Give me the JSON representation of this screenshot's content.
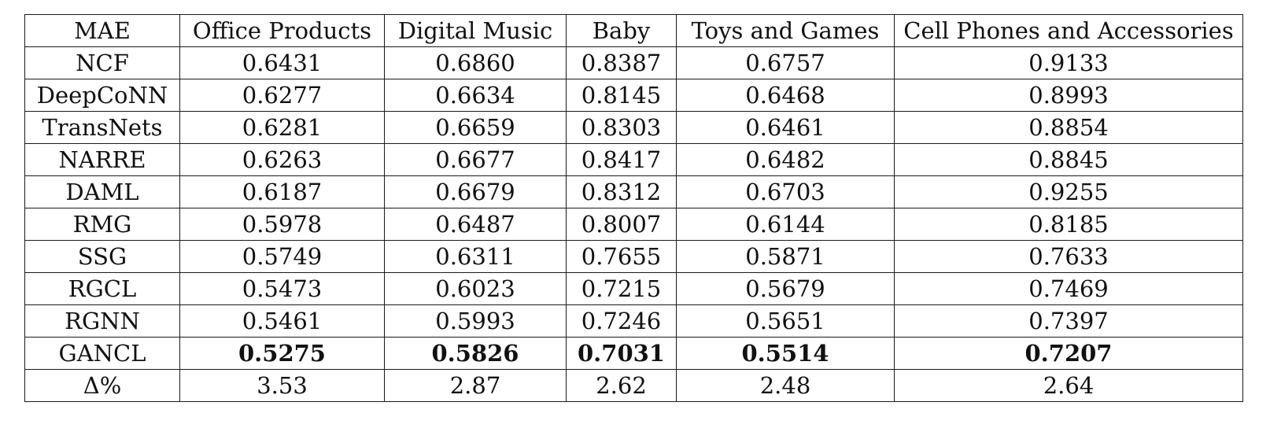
{
  "table": {
    "corner_label": "MAE",
    "columns": [
      "Office Products",
      "Digital Music",
      "Baby",
      "Toys and Games",
      "Cell Phones and Accessories"
    ],
    "rows": [
      {
        "model": "NCF",
        "values": [
          "0.6431",
          "0.6860",
          "0.8387",
          "0.6757",
          "0.9133"
        ],
        "bold": false
      },
      {
        "model": "DeepCoNN",
        "values": [
          "0.6277",
          "0.6634",
          "0.8145",
          "0.6468",
          "0.8993"
        ],
        "bold": false
      },
      {
        "model": "TransNets",
        "values": [
          "0.6281",
          "0.6659",
          "0.8303",
          "0.6461",
          "0.8854"
        ],
        "bold": false
      },
      {
        "model": "NARRE",
        "values": [
          "0.6263",
          "0.6677",
          "0.8417",
          "0.6482",
          "0.8845"
        ],
        "bold": false
      },
      {
        "model": "DAML",
        "values": [
          "0.6187",
          "0.6679",
          "0.8312",
          "0.6703",
          "0.9255"
        ],
        "bold": false
      },
      {
        "model": "RMG",
        "values": [
          "0.5978",
          "0.6487",
          "0.8007",
          "0.6144",
          "0.8185"
        ],
        "bold": false
      },
      {
        "model": "SSG",
        "values": [
          "0.5749",
          "0.6311",
          "0.7655",
          "0.5871",
          "0.7633"
        ],
        "bold": false
      },
      {
        "model": "RGCL",
        "values": [
          "0.5473",
          "0.6023",
          "0.7215",
          "0.5679",
          "0.7469"
        ],
        "bold": false
      },
      {
        "model": "RGNN",
        "values": [
          "0.5461",
          "0.5993",
          "0.7246",
          "0.5651",
          "0.7397"
        ],
        "bold": false
      },
      {
        "model": "GANCL",
        "values": [
          "0.5275",
          "0.5826",
          "0.7031",
          "0.5514",
          "0.7207"
        ],
        "bold": true
      },
      {
        "model": "Δ%",
        "values": [
          "3.53",
          "2.87",
          "2.62",
          "2.48",
          "2.64"
        ],
        "bold": false
      }
    ]
  }
}
